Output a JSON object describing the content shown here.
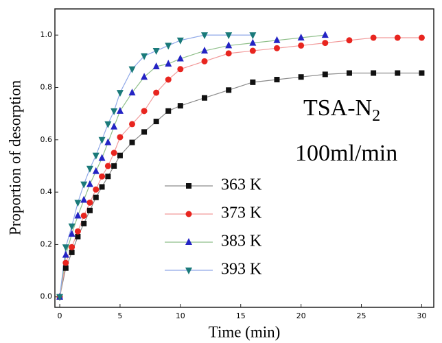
{
  "chart_data": {
    "type": "line",
    "x_label": "Time (min)",
    "y_label": "Proportion of desorption",
    "annotations": [
      {
        "text": "TSA-N",
        "subscript": "2"
      },
      {
        "text": "100ml/min"
      }
    ],
    "xlim": [
      -0.4,
      31
    ],
    "xticks": [
      0,
      5,
      10,
      15,
      20,
      25,
      30
    ],
    "ylim": [
      -0.04,
      1.1
    ],
    "yticks": [
      {
        "value": 0,
        "label": "0.0"
      },
      {
        "value": 0.2,
        "label": "0.2"
      },
      {
        "value": 0.4,
        "label": "0.4"
      },
      {
        "value": 0.6,
        "label": "0.6"
      },
      {
        "value": 0.8,
        "label": "0.8"
      },
      {
        "value": 1,
        "label": "1.0"
      }
    ],
    "series": [
      {
        "name": "363 K",
        "color": "#111111",
        "line_color": "#8a8a8a",
        "marker": "square",
        "x": [
          0,
          0.5,
          1,
          1.5,
          2,
          2.5,
          3,
          3.5,
          4,
          4.5,
          5,
          6,
          7,
          8,
          9,
          10,
          12,
          14,
          16,
          18,
          20,
          22,
          24,
          26,
          28,
          30
        ],
        "values": [
          0,
          0.11,
          0.17,
          0.23,
          0.28,
          0.33,
          0.38,
          0.42,
          0.46,
          0.5,
          0.54,
          0.59,
          0.63,
          0.67,
          0.71,
          0.73,
          0.76,
          0.79,
          0.82,
          0.83,
          0.84,
          0.85,
          0.855,
          0.855,
          0.855,
          0.855
        ]
      },
      {
        "name": "373 K",
        "color": "#e8251f",
        "line_color": "#f29a9a",
        "marker": "circle",
        "x": [
          0,
          0.5,
          1,
          1.5,
          2,
          2.5,
          3,
          3.5,
          4,
          4.5,
          5,
          6,
          7,
          8,
          9,
          10,
          12,
          14,
          16,
          18,
          20,
          22,
          24,
          26,
          28,
          30
        ],
        "values": [
          0,
          0.13,
          0.19,
          0.25,
          0.31,
          0.36,
          0.41,
          0.46,
          0.5,
          0.55,
          0.61,
          0.66,
          0.71,
          0.78,
          0.83,
          0.87,
          0.9,
          0.93,
          0.94,
          0.95,
          0.96,
          0.97,
          0.98,
          0.99,
          0.99,
          0.99
        ]
      },
      {
        "name": "383 K",
        "color": "#2424c4",
        "line_color": "#8fbf8a",
        "marker": "triangle-up",
        "x": [
          0,
          0.5,
          1,
          1.5,
          2,
          2.5,
          3,
          3.5,
          4,
          4.5,
          5,
          6,
          7,
          8,
          9,
          10,
          12,
          14,
          16,
          18,
          20,
          22
        ],
        "values": [
          0,
          0.16,
          0.24,
          0.31,
          0.37,
          0.43,
          0.48,
          0.53,
          0.59,
          0.65,
          0.71,
          0.78,
          0.84,
          0.88,
          0.89,
          0.91,
          0.94,
          0.96,
          0.97,
          0.98,
          0.99,
          1.0
        ]
      },
      {
        "name": "393 K",
        "color": "#1a7a7a",
        "line_color": "#8fa8e8",
        "marker": "triangle-down",
        "x": [
          0,
          0.5,
          1,
          1.5,
          2,
          2.5,
          3,
          3.5,
          4,
          4.5,
          5,
          6,
          7,
          8,
          9,
          10,
          12,
          14,
          16
        ],
        "values": [
          0,
          0.19,
          0.27,
          0.36,
          0.43,
          0.49,
          0.54,
          0.6,
          0.66,
          0.71,
          0.78,
          0.87,
          0.92,
          0.94,
          0.96,
          0.98,
          1.0,
          1.0,
          1.0
        ]
      }
    ]
  }
}
